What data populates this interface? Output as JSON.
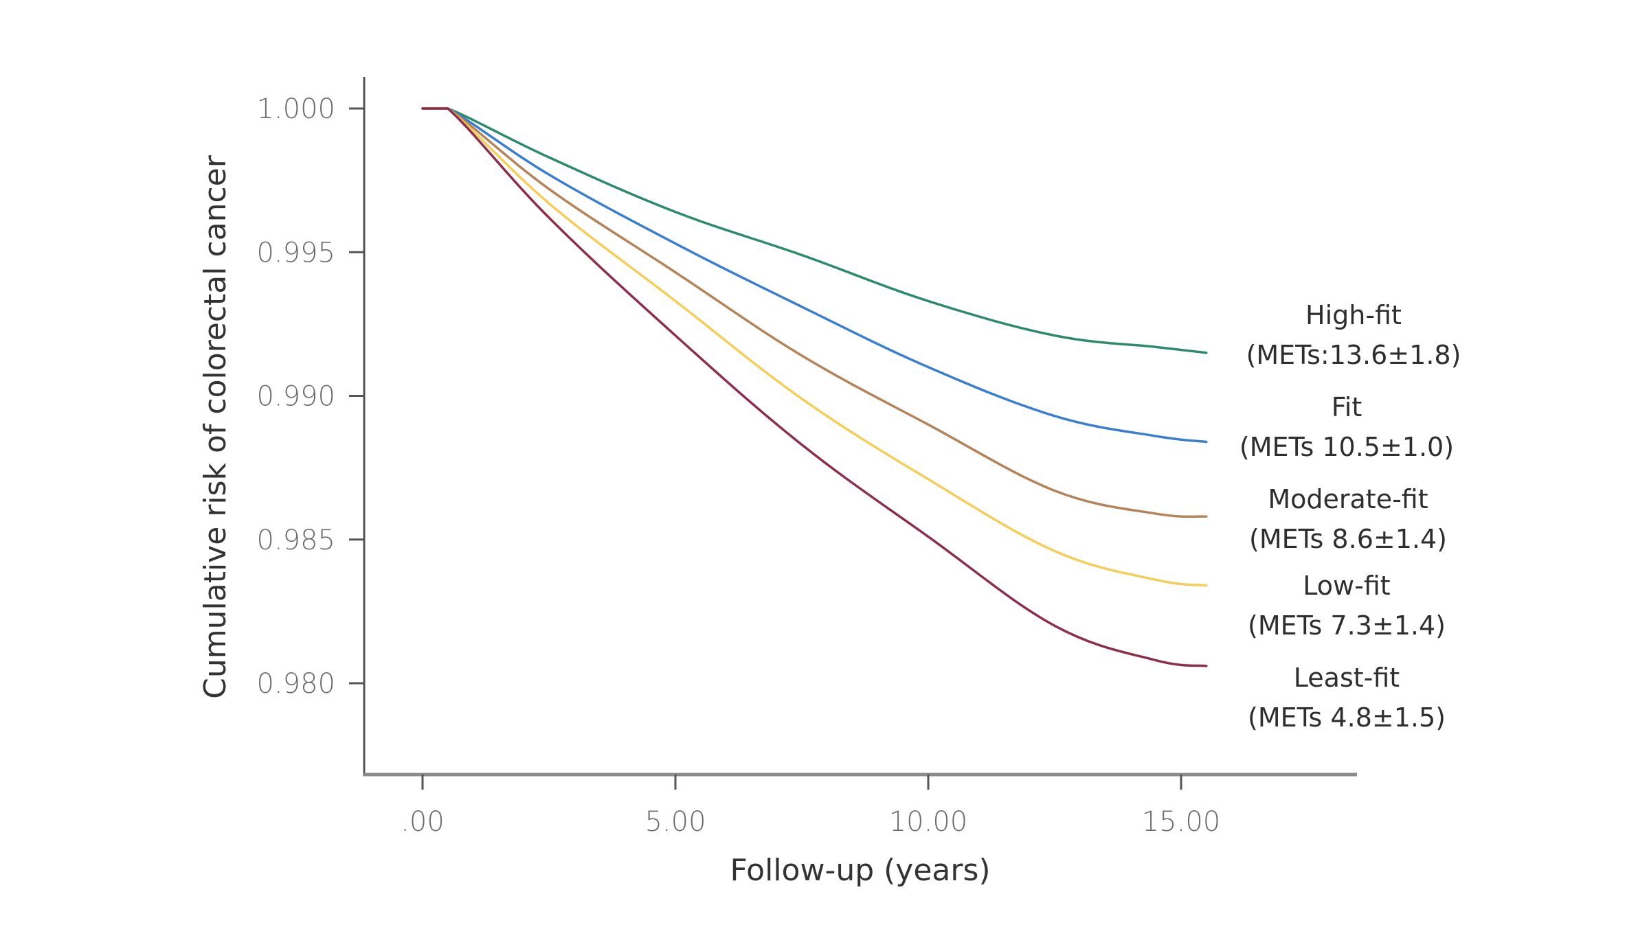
{
  "chart_data": {
    "type": "line",
    "title": "",
    "xlabel": "Follow-up (years)",
    "ylabel": "Cumulative risk of colorectal cancer",
    "xlim": [
      -1.2,
      18.0
    ],
    "ylim": [
      0.977,
      1.001
    ],
    "grid": false,
    "legend_position": "right (inline labels at line ends)",
    "x_ticks": [
      0,
      5,
      10,
      15
    ],
    "x_tick_labels": [
      ".00",
      "5.00",
      "10.00",
      "15.00"
    ],
    "y_ticks": [
      1.0,
      0.995,
      0.99,
      0.985,
      0.98
    ],
    "y_tick_labels": [
      "1.000",
      "0.995",
      "0.990",
      "0.985",
      "0.980"
    ],
    "x": [
      0,
      0.5,
      2.5,
      5,
      7.5,
      10,
      12.5,
      14.5,
      15.5
    ],
    "series": [
      {
        "name": "High-fit",
        "detail": "(METs:13.6±1.8)",
        "color": "#2e8a6c",
        "values": [
          1.0,
          1.0,
          0.9983,
          0.9964,
          0.9949,
          0.9933,
          0.9921,
          0.9917,
          0.9915
        ]
      },
      {
        "name": "Fit",
        "detail": "(METs 10.5±1.0)",
        "color": "#3a7fcf",
        "values": [
          1.0,
          1.0,
          0.9977,
          0.9953,
          0.9931,
          0.991,
          0.9893,
          0.9886,
          0.9884
        ]
      },
      {
        "name": "Moderate-fit",
        "detail": "(METs 8.6±1.4)",
        "color": "#b5835a",
        "values": [
          1.0,
          1.0,
          0.9972,
          0.9943,
          0.9914,
          0.989,
          0.9867,
          0.9859,
          0.9858
        ]
      },
      {
        "name": "Low-fit",
        "detail": "(METs 7.3±1.4)",
        "color": "#f5cd5a",
        "values": [
          1.0,
          1.0,
          0.9967,
          0.9933,
          0.9899,
          0.9871,
          0.9846,
          0.9836,
          0.9834
        ]
      },
      {
        "name": "Least-fit",
        "detail": "(METs 4.8±1.5)",
        "color": "#8b2f4a",
        "values": [
          1.0,
          1.0,
          0.9962,
          0.9921,
          0.9883,
          0.9851,
          0.982,
          0.9808,
          0.9806
        ]
      }
    ]
  }
}
